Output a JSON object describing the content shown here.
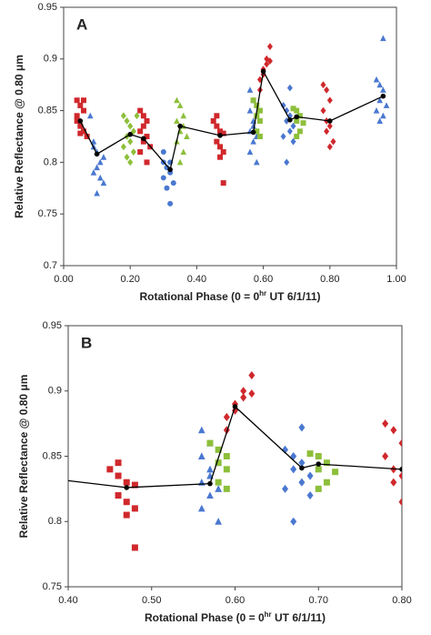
{
  "chart_data": [
    {
      "type": "scatter",
      "panel_label": "A",
      "y_label": "Relative Reflectance @ 0.80 μm",
      "x_label": [
        "Rotational Phase (0 = 0",
        "hr",
        " UT 6/1/11)"
      ],
      "xlim": [
        0,
        1
      ],
      "ylim": [
        0.7,
        0.95
      ],
      "xticks": [
        {
          "value": 0,
          "label": "0.00"
        },
        {
          "value": 0.2,
          "label": "0.20"
        },
        {
          "value": 0.4,
          "label": "0.40"
        },
        {
          "value": 0.6,
          "label": "0.60"
        },
        {
          "value": 0.8,
          "label": "0.80"
        },
        {
          "value": 1,
          "label": "1.00"
        }
      ],
      "yticks": [
        0.7,
        0.75,
        0.8,
        0.85,
        0.9,
        0.95
      ],
      "series": [
        {
          "color": "#d0282c",
          "marker": "square",
          "x": [
            0.04,
            0.05,
            0.04,
            0.06,
            0.05,
            0.06,
            0.04,
            0.07,
            0.05,
            0.06,
            0.23,
            0.24,
            0.25,
            0.23,
            0.25,
            0.24,
            0.26,
            0.23,
            0.25,
            0.24,
            0.45,
            0.46,
            0.47,
            0.48,
            0.46,
            0.47,
            0.48,
            0.47,
            0.48,
            0.46
          ],
          "values": [
            0.86,
            0.855,
            0.845,
            0.85,
            0.835,
            0.83,
            0.84,
            0.825,
            0.828,
            0.86,
            0.85,
            0.845,
            0.84,
            0.83,
            0.825,
            0.82,
            0.815,
            0.81,
            0.8,
            0.835,
            0.84,
            0.835,
            0.83,
            0.828,
            0.82,
            0.815,
            0.81,
            0.805,
            0.78,
            0.845
          ]
        },
        {
          "color": "#4a78d0",
          "marker": "triangle",
          "x": [
            0.09,
            0.1,
            0.11,
            0.1,
            0.12,
            0.09,
            0.11,
            0.1,
            0.12,
            0.09,
            0.08,
            0.56,
            0.57,
            0.56,
            0.58,
            0.57,
            0.56,
            0.58,
            0.57,
            0.56,
            0.58,
            0.57,
            0.94,
            0.95,
            0.96,
            0.95,
            0.97,
            0.94,
            0.96,
            0.95,
            0.96
          ],
          "values": [
            0.82,
            0.81,
            0.8,
            0.795,
            0.805,
            0.79,
            0.785,
            0.77,
            0.78,
            0.815,
            0.845,
            0.87,
            0.86,
            0.85,
            0.845,
            0.84,
            0.83,
            0.825,
            0.82,
            0.81,
            0.8,
            0.835,
            0.88,
            0.875,
            0.87,
            0.86,
            0.855,
            0.85,
            0.845,
            0.84,
            0.92
          ]
        },
        {
          "color": "#8dbf3a",
          "marker": "diamond",
          "x": [
            0.18,
            0.19,
            0.2,
            0.21,
            0.19,
            0.2,
            0.18,
            0.21,
            0.2,
            0.22,
            0.19
          ],
          "values": [
            0.845,
            0.84,
            0.835,
            0.83,
            0.825,
            0.82,
            0.815,
            0.81,
            0.8,
            0.845,
            0.805
          ]
        },
        {
          "color": "#4a78d0",
          "marker": "circle",
          "x": [
            0.3,
            0.31,
            0.32,
            0.3,
            0.33,
            0.31,
            0.32,
            0.3,
            0.32
          ],
          "values": [
            0.8,
            0.795,
            0.79,
            0.785,
            0.78,
            0.775,
            0.76,
            0.81,
            0.8
          ]
        },
        {
          "color": "#8dbf3a",
          "marker": "triangle",
          "x": [
            0.34,
            0.35,
            0.36,
            0.34,
            0.36,
            0.35,
            0.37,
            0.34,
            0.36,
            0.35
          ],
          "values": [
            0.86,
            0.855,
            0.845,
            0.84,
            0.835,
            0.83,
            0.825,
            0.82,
            0.81,
            0.8
          ]
        },
        {
          "color": "#8dbf3a",
          "marker": "square",
          "x": [
            0.57,
            0.58,
            0.59,
            0.58,
            0.59,
            0.58,
            0.59,
            0.69,
            0.7,
            0.71,
            0.7,
            0.72,
            0.71,
            0.7
          ],
          "values": [
            0.86,
            0.855,
            0.85,
            0.845,
            0.84,
            0.83,
            0.825,
            0.852,
            0.85,
            0.845,
            0.84,
            0.838,
            0.83,
            0.825
          ]
        },
        {
          "color": "#d0282c",
          "marker": "diamond",
          "x": [
            0.59,
            0.6,
            0.61,
            0.62,
            0.6,
            0.61,
            0.59,
            0.62,
            0.78,
            0.79,
            0.8,
            0.78,
            0.79,
            0.8,
            0.79,
            0.81,
            0.8
          ],
          "values": [
            0.88,
            0.89,
            0.9,
            0.912,
            0.885,
            0.895,
            0.87,
            0.898,
            0.875,
            0.87,
            0.86,
            0.85,
            0.84,
            0.835,
            0.83,
            0.82,
            0.815
          ]
        },
        {
          "color": "#4a78d0",
          "marker": "diamond",
          "x": [
            0.66,
            0.67,
            0.68,
            0.67,
            0.69,
            0.68,
            0.66,
            0.69,
            0.67,
            0.68
          ],
          "values": [
            0.855,
            0.85,
            0.845,
            0.84,
            0.835,
            0.83,
            0.825,
            0.82,
            0.8,
            0.872
          ]
        }
      ],
      "mean_line": {
        "color": "#000000",
        "x": [
          0.05,
          0.1,
          0.2,
          0.24,
          0.32,
          0.35,
          0.47,
          0.57,
          0.6,
          0.68,
          0.7,
          0.8,
          0.96
        ],
        "values": [
          0.84,
          0.808,
          0.827,
          0.823,
          0.793,
          0.835,
          0.826,
          0.829,
          0.888,
          0.841,
          0.844,
          0.84,
          0.864
        ]
      }
    },
    {
      "type": "scatter",
      "panel_label": "B",
      "y_label": "Relative Reflectance @ 0.80 μm",
      "x_label": [
        "Rotational Phase (0 = 0",
        "hr",
        " UT 6/1/11)"
      ],
      "xlim": [
        0.4,
        0.8
      ],
      "ylim": [
        0.75,
        0.95
      ],
      "xticks": [
        {
          "value": 0.4,
          "label": "0.40"
        },
        {
          "value": 0.5,
          "label": "0.50"
        },
        {
          "value": 0.6,
          "label": "0.60"
        },
        {
          "value": 0.7,
          "label": "0.70"
        },
        {
          "value": 0.8,
          "label": "0.80"
        }
      ],
      "yticks": [
        0.75,
        0.8,
        0.85,
        0.9,
        0.95
      ]
    }
  ]
}
